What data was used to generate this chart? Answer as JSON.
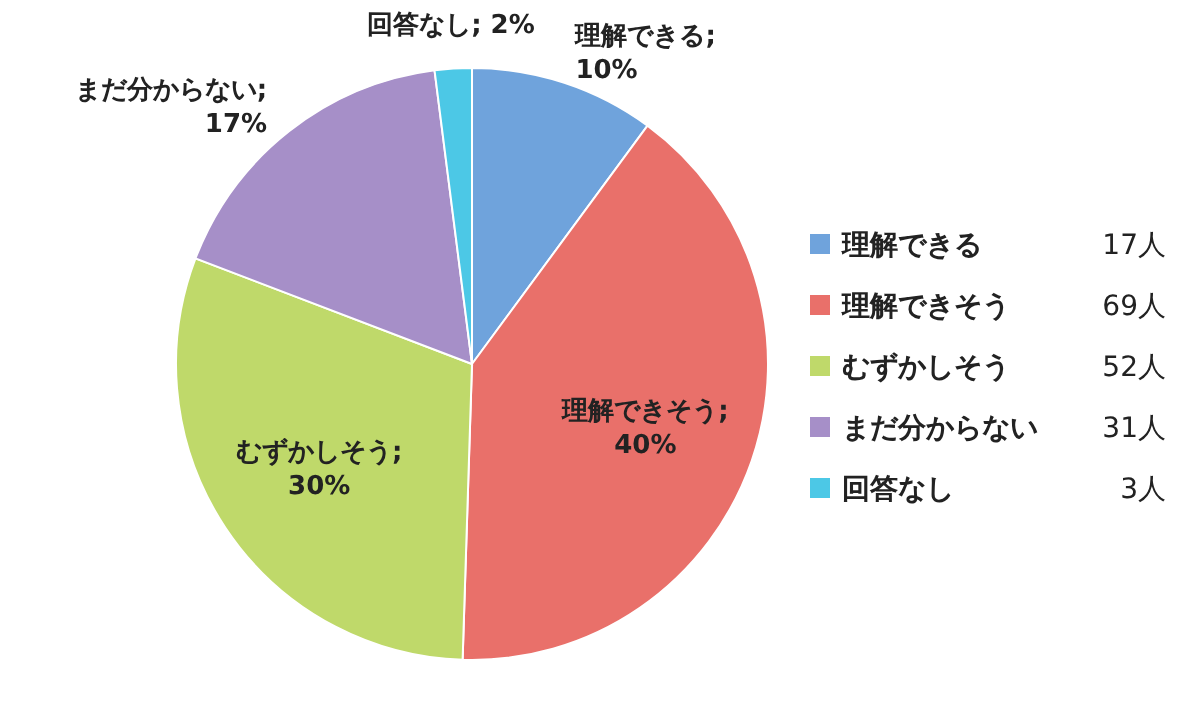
{
  "chart_data": {
    "type": "pie",
    "categories": [
      "理解できる",
      "理解できそう",
      "むずかしそう",
      "まだ分からない",
      "回答なし"
    ],
    "values": [
      10,
      40,
      30,
      17,
      2
    ],
    "colors": [
      "#6fa3dc",
      "#e9706a",
      "#bfd96a",
      "#a68fc8",
      "#4cc8e6"
    ],
    "value_labels": [
      "理解できる; 10%",
      "理解できそう; 40%",
      "むずかしそう; 30%",
      "まだ分からない; 17%",
      "回答なし; 2%"
    ],
    "legend": "right",
    "annotations": [
      "17人",
      "69人",
      "52人",
      "31人",
      "3人"
    ]
  }
}
